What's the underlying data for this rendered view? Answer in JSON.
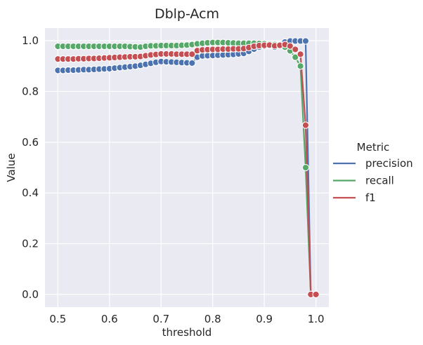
{
  "chart_data": {
    "type": "line",
    "title": "Dblp-Acm",
    "xlabel": "threshold",
    "ylabel": "Value",
    "xlim": [
      0.475,
      1.025
    ],
    "ylim": [
      -0.05,
      1.05
    ],
    "x_ticks": [
      "0.5",
      "0.6",
      "0.7",
      "0.8",
      "0.9",
      "1.0"
    ],
    "y_ticks": [
      "0.0",
      "0.2",
      "0.4",
      "0.6",
      "0.8",
      "1.0"
    ],
    "grid": true,
    "legend": {
      "title": "Metric",
      "placement": "right"
    },
    "x": [
      0.5,
      0.51,
      0.52,
      0.53,
      0.54,
      0.55,
      0.56,
      0.57,
      0.58,
      0.59,
      0.6,
      0.61,
      0.62,
      0.63,
      0.64,
      0.65,
      0.66,
      0.67,
      0.68,
      0.69,
      0.7,
      0.71,
      0.72,
      0.73,
      0.74,
      0.75,
      0.76,
      0.77,
      0.78,
      0.79,
      0.8,
      0.81,
      0.82,
      0.83,
      0.84,
      0.85,
      0.86,
      0.87,
      0.88,
      0.89,
      0.9,
      0.91,
      0.92,
      0.93,
      0.94,
      0.95,
      0.96,
      0.97,
      0.98,
      0.99,
      1.0
    ],
    "series": [
      {
        "name": "precision",
        "color": "#4c72b0",
        "values": [
          0.883,
          0.883,
          0.884,
          0.884,
          0.885,
          0.886,
          0.886,
          0.887,
          0.888,
          0.889,
          0.89,
          0.892,
          0.894,
          0.896,
          0.898,
          0.9,
          0.903,
          0.907,
          0.911,
          0.915,
          0.918,
          0.917,
          0.916,
          0.915,
          0.914,
          0.913,
          0.912,
          0.935,
          0.94,
          0.941,
          0.942,
          0.943,
          0.944,
          0.945,
          0.946,
          0.948,
          0.95,
          0.958,
          0.967,
          0.975,
          0.978,
          0.98,
          0.975,
          0.985,
          0.995,
          0.999,
          0.999,
          0.999,
          0.999,
          0.0,
          0.0
        ]
      },
      {
        "name": "recall",
        "color": "#55a868",
        "values": [
          0.978,
          0.978,
          0.978,
          0.978,
          0.978,
          0.978,
          0.978,
          0.978,
          0.978,
          0.978,
          0.978,
          0.978,
          0.978,
          0.978,
          0.977,
          0.976,
          0.975,
          0.978,
          0.98,
          0.98,
          0.981,
          0.981,
          0.981,
          0.981,
          0.982,
          0.983,
          0.985,
          0.988,
          0.99,
          0.992,
          0.993,
          0.993,
          0.993,
          0.992,
          0.991,
          0.99,
          0.99,
          0.99,
          0.99,
          0.989,
          0.988,
          0.987,
          0.985,
          0.98,
          0.975,
          0.96,
          0.935,
          0.9,
          0.5,
          0.0,
          0.0
        ]
      },
      {
        "name": "f1",
        "color": "#c44e52",
        "values": [
          0.928,
          0.928,
          0.928,
          0.928,
          0.929,
          0.929,
          0.93,
          0.93,
          0.931,
          0.932,
          0.933,
          0.934,
          0.935,
          0.936,
          0.937,
          0.937,
          0.938,
          0.941,
          0.944,
          0.946,
          0.948,
          0.948,
          0.948,
          0.947,
          0.947,
          0.947,
          0.947,
          0.961,
          0.964,
          0.965,
          0.966,
          0.966,
          0.967,
          0.967,
          0.968,
          0.968,
          0.969,
          0.973,
          0.978,
          0.981,
          0.982,
          0.983,
          0.98,
          0.982,
          0.985,
          0.979,
          0.966,
          0.947,
          0.667,
          0.0,
          0.0
        ]
      }
    ]
  }
}
